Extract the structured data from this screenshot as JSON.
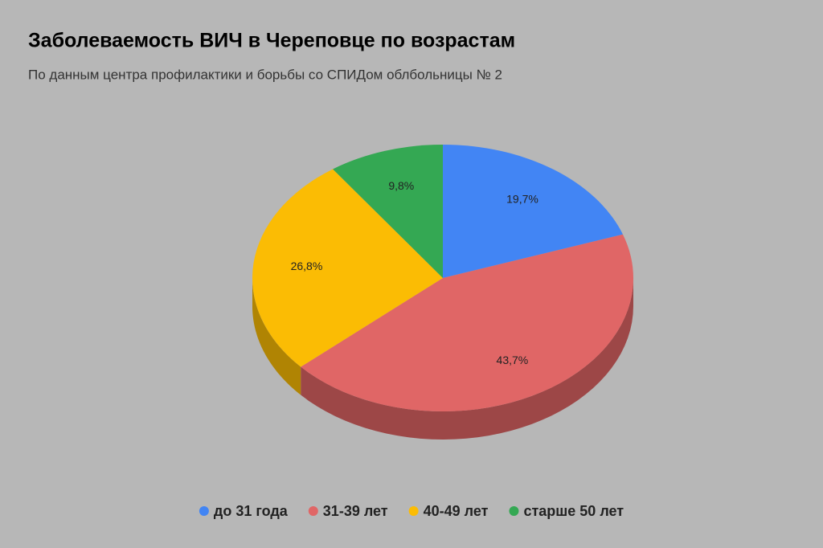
{
  "chart_data": {
    "type": "pie",
    "title": "Заболеваемость ВИЧ в Череповце по возрастам",
    "subtitle": "По данным центра профилактики и борьбы со СПИДом облбольницы № 2",
    "categories": [
      "до 31 года",
      "31-39 лет",
      "40-49 лет",
      "старше 50 лет"
    ],
    "values": [
      19.7,
      43.7,
      26.8,
      9.8
    ],
    "value_labels": [
      "19,7%",
      "43,7%",
      "26,8%",
      "9,8%"
    ],
    "colors": [
      "#4285f4",
      "#e06666",
      "#fbbc04",
      "#34a853"
    ],
    "legend": "bottom"
  }
}
